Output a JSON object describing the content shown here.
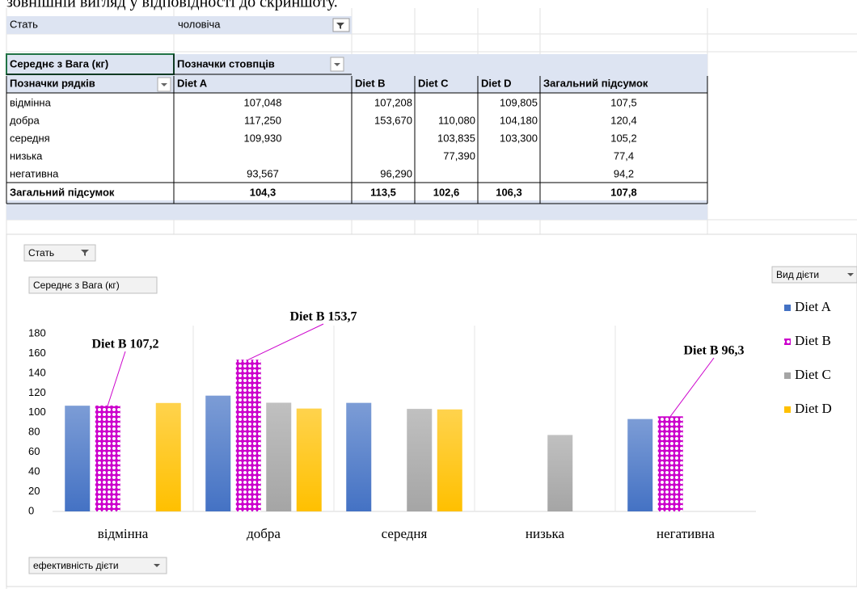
{
  "caption": "зовнішній вигляд у відповідності до скриншоту.",
  "filter": {
    "field": "Стать",
    "value": "чоловіча"
  },
  "table": {
    "value_field": "Середнє з Вага (кг)",
    "column_labels": "Позначки стовпців",
    "row_labels": "Позначки рядків",
    "columns": [
      "Diet A",
      "Diet B",
      "Diet C",
      "Diet D",
      "Загальний підсумок"
    ],
    "rows": [
      [
        "відмінна",
        "107,048",
        "107,208",
        null,
        "109,805",
        "107,5"
      ],
      [
        "добра",
        "117,250",
        "153,670",
        "110,080",
        "104,180",
        "120,4"
      ],
      [
        "середня",
        "109,930",
        null,
        "103,835",
        "103,300",
        "105,2"
      ],
      [
        "низька",
        null,
        null,
        "77,390",
        null,
        "77,4"
      ],
      [
        "негативна",
        "93,567",
        "96,290",
        null,
        null,
        "94,2"
      ]
    ],
    "total": [
      "Загальний підсумок",
      "104,3",
      "113,5",
      "102,6",
      "106,3",
      "107,8"
    ]
  },
  "chart_data": {
    "type": "bar",
    "buttons": {
      "filter": "Стать",
      "value": "Середнє з Вага (кг)",
      "legend": "Вид дієти",
      "axis": "ефективність дієти"
    },
    "categories": [
      "відмінна",
      "добра",
      "середня",
      "низька",
      "негативна"
    ],
    "series": [
      {
        "name": "Diet A",
        "color": "#4472c4",
        "values": [
          107.048,
          117.25,
          109.93,
          null,
          93.567
        ]
      },
      {
        "name": "Diet B",
        "color": "#cc00cc",
        "values": [
          107.208,
          153.67,
          null,
          null,
          96.29
        ],
        "value_labels": [
          "Diet B 107,2",
          "Diet B 153,7",
          null,
          null,
          "Diet B 96,3"
        ]
      },
      {
        "name": "Diet C",
        "color": "#a5a5a5",
        "values": [
          null,
          110.08,
          103.835,
          77.39,
          null
        ]
      },
      {
        "name": "Diet D",
        "color": "#ffc000",
        "values": [
          109.805,
          104.18,
          103.3,
          null,
          null
        ]
      }
    ],
    "ylim": [
      0,
      180
    ],
    "yticks": [
      0,
      20,
      40,
      60,
      80,
      100,
      120,
      140,
      160,
      180
    ],
    "grid": false,
    "legend": "right"
  }
}
